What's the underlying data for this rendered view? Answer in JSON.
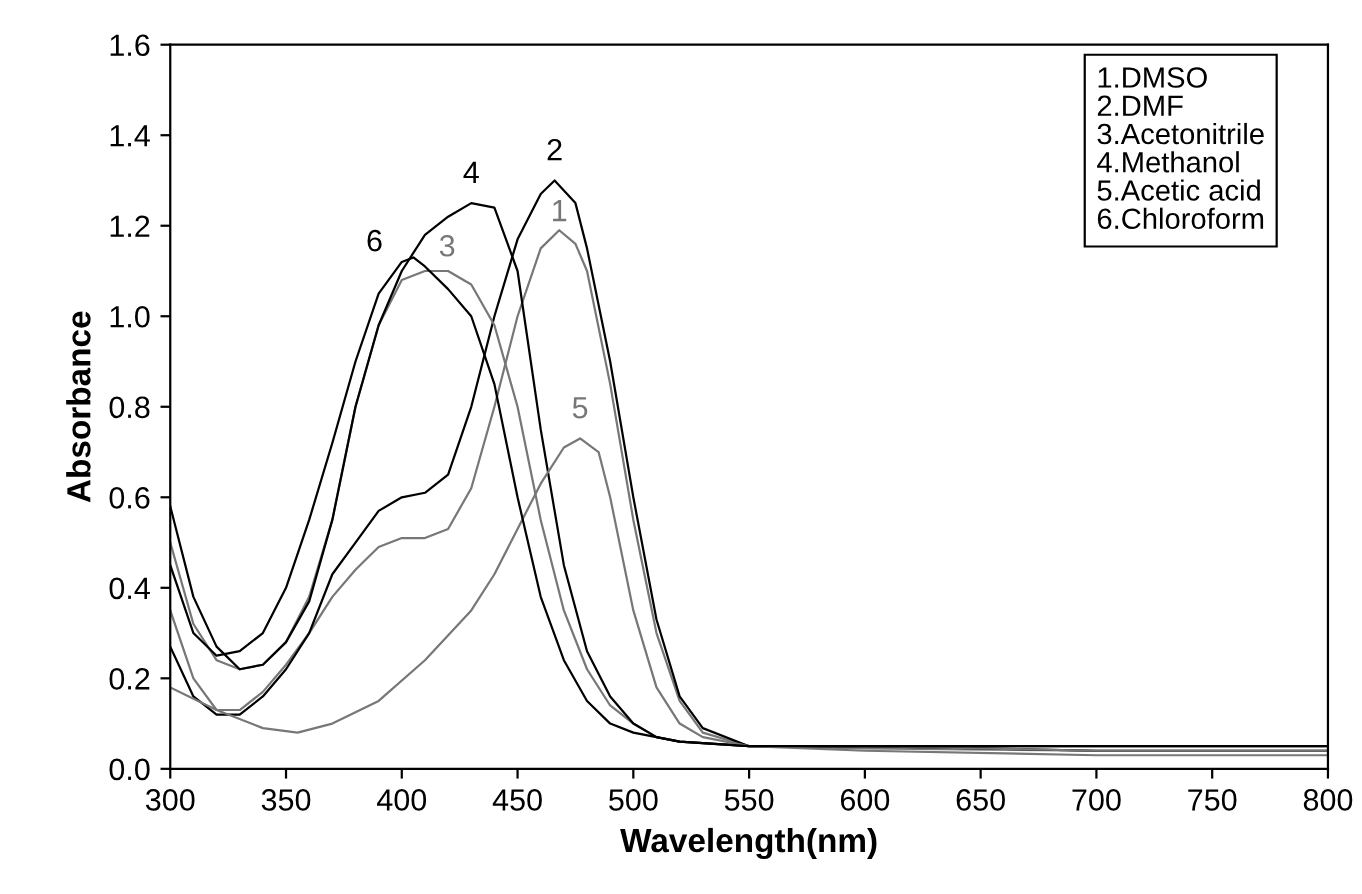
{
  "chart_data": {
    "type": "line",
    "xlabel": "Wavelength(nm)",
    "ylabel": "Absorbance",
    "xlim": [
      300,
      800
    ],
    "xticks": [
      300,
      350,
      400,
      450,
      500,
      550,
      600,
      650,
      700,
      750,
      800
    ],
    "ylim": [
      0.0,
      1.6
    ],
    "yticks": [
      {
        "value": 0,
        "label": "0.0"
      },
      0.2,
      0.4,
      0.6,
      0.8,
      {
        "value": 1,
        "label": "1.0"
      },
      1.2,
      1.4,
      1.6
    ],
    "grid": false,
    "legend": false,
    "marker": "none",
    "line_style": "solid",
    "annotations": [
      "1.DMSO\n2.DMF\n3.Acetonitrile\n4.Methanol\n5.Acetic acid\n6.Chloroform"
    ],
    "series": [
      {
        "name": "1",
        "color": "#777777",
        "x": [
          300,
          310,
          320,
          330,
          340,
          350,
          360,
          370,
          380,
          390,
          400,
          410,
          420,
          430,
          440,
          450,
          460,
          468,
          475,
          480,
          490,
          500,
          510,
          520,
          530,
          550,
          600,
          700,
          800
        ],
        "values": [
          0.35,
          0.2,
          0.13,
          0.13,
          0.17,
          0.23,
          0.3,
          0.38,
          0.44,
          0.49,
          0.51,
          0.51,
          0.53,
          0.62,
          0.8,
          1.0,
          1.15,
          1.19,
          1.16,
          1.1,
          0.85,
          0.55,
          0.3,
          0.15,
          0.08,
          0.05,
          0.045,
          0.04,
          0.04
        ]
      },
      {
        "name": "2",
        "color": "#000000",
        "x": [
          300,
          310,
          320,
          330,
          340,
          350,
          360,
          370,
          380,
          390,
          400,
          410,
          420,
          430,
          440,
          450,
          460,
          466,
          475,
          480,
          490,
          500,
          510,
          520,
          530,
          550,
          600,
          700,
          800
        ],
        "values": [
          0.27,
          0.16,
          0.12,
          0.12,
          0.16,
          0.22,
          0.3,
          0.43,
          0.5,
          0.57,
          0.6,
          0.61,
          0.65,
          0.8,
          1.0,
          1.17,
          1.27,
          1.3,
          1.25,
          1.15,
          0.9,
          0.6,
          0.33,
          0.16,
          0.09,
          0.05,
          0.05,
          0.04,
          0.04
        ]
      },
      {
        "name": "3",
        "color": "#777777",
        "x": [
          300,
          310,
          320,
          330,
          340,
          350,
          360,
          370,
          380,
          390,
          400,
          410,
          420,
          430,
          440,
          450,
          460,
          470,
          480,
          490,
          500,
          510,
          520,
          550,
          600,
          700,
          800
        ],
        "values": [
          0.5,
          0.32,
          0.24,
          0.22,
          0.23,
          0.28,
          0.38,
          0.55,
          0.8,
          0.98,
          1.08,
          1.1,
          1.1,
          1.07,
          0.98,
          0.8,
          0.55,
          0.35,
          0.22,
          0.14,
          0.1,
          0.07,
          0.06,
          0.05,
          0.05,
          0.04,
          0.04
        ]
      },
      {
        "name": "4",
        "color": "#000000",
        "x": [
          300,
          310,
          320,
          330,
          340,
          350,
          360,
          370,
          380,
          390,
          400,
          410,
          420,
          430,
          440,
          450,
          460,
          470,
          480,
          490,
          500,
          510,
          520,
          550,
          600,
          700,
          800
        ],
        "values": [
          0.58,
          0.38,
          0.27,
          0.22,
          0.23,
          0.28,
          0.37,
          0.55,
          0.8,
          0.98,
          1.1,
          1.18,
          1.22,
          1.25,
          1.24,
          1.1,
          0.75,
          0.45,
          0.26,
          0.16,
          0.1,
          0.07,
          0.06,
          0.05,
          0.05,
          0.05,
          0.05
        ]
      },
      {
        "name": "5",
        "color": "#777777",
        "x": [
          300,
          320,
          340,
          355,
          370,
          390,
          410,
          430,
          440,
          450,
          460,
          470,
          477,
          485,
          490,
          500,
          510,
          520,
          530,
          550,
          600,
          700,
          800
        ],
        "values": [
          0.18,
          0.13,
          0.09,
          0.08,
          0.1,
          0.15,
          0.24,
          0.35,
          0.43,
          0.53,
          0.63,
          0.71,
          0.73,
          0.7,
          0.6,
          0.35,
          0.18,
          0.1,
          0.07,
          0.05,
          0.04,
          0.03,
          0.03
        ]
      },
      {
        "name": "6",
        "color": "#000000",
        "x": [
          300,
          310,
          320,
          330,
          340,
          350,
          360,
          370,
          380,
          390,
          400,
          405,
          410,
          420,
          430,
          440,
          450,
          460,
          470,
          480,
          490,
          500,
          520,
          550,
          600,
          700,
          800
        ],
        "values": [
          0.45,
          0.3,
          0.25,
          0.26,
          0.3,
          0.4,
          0.55,
          0.72,
          0.9,
          1.05,
          1.12,
          1.13,
          1.11,
          1.06,
          1.0,
          0.85,
          0.6,
          0.38,
          0.24,
          0.15,
          0.1,
          0.08,
          0.06,
          0.05,
          0.05,
          0.05,
          0.05
        ]
      }
    ]
  }
}
